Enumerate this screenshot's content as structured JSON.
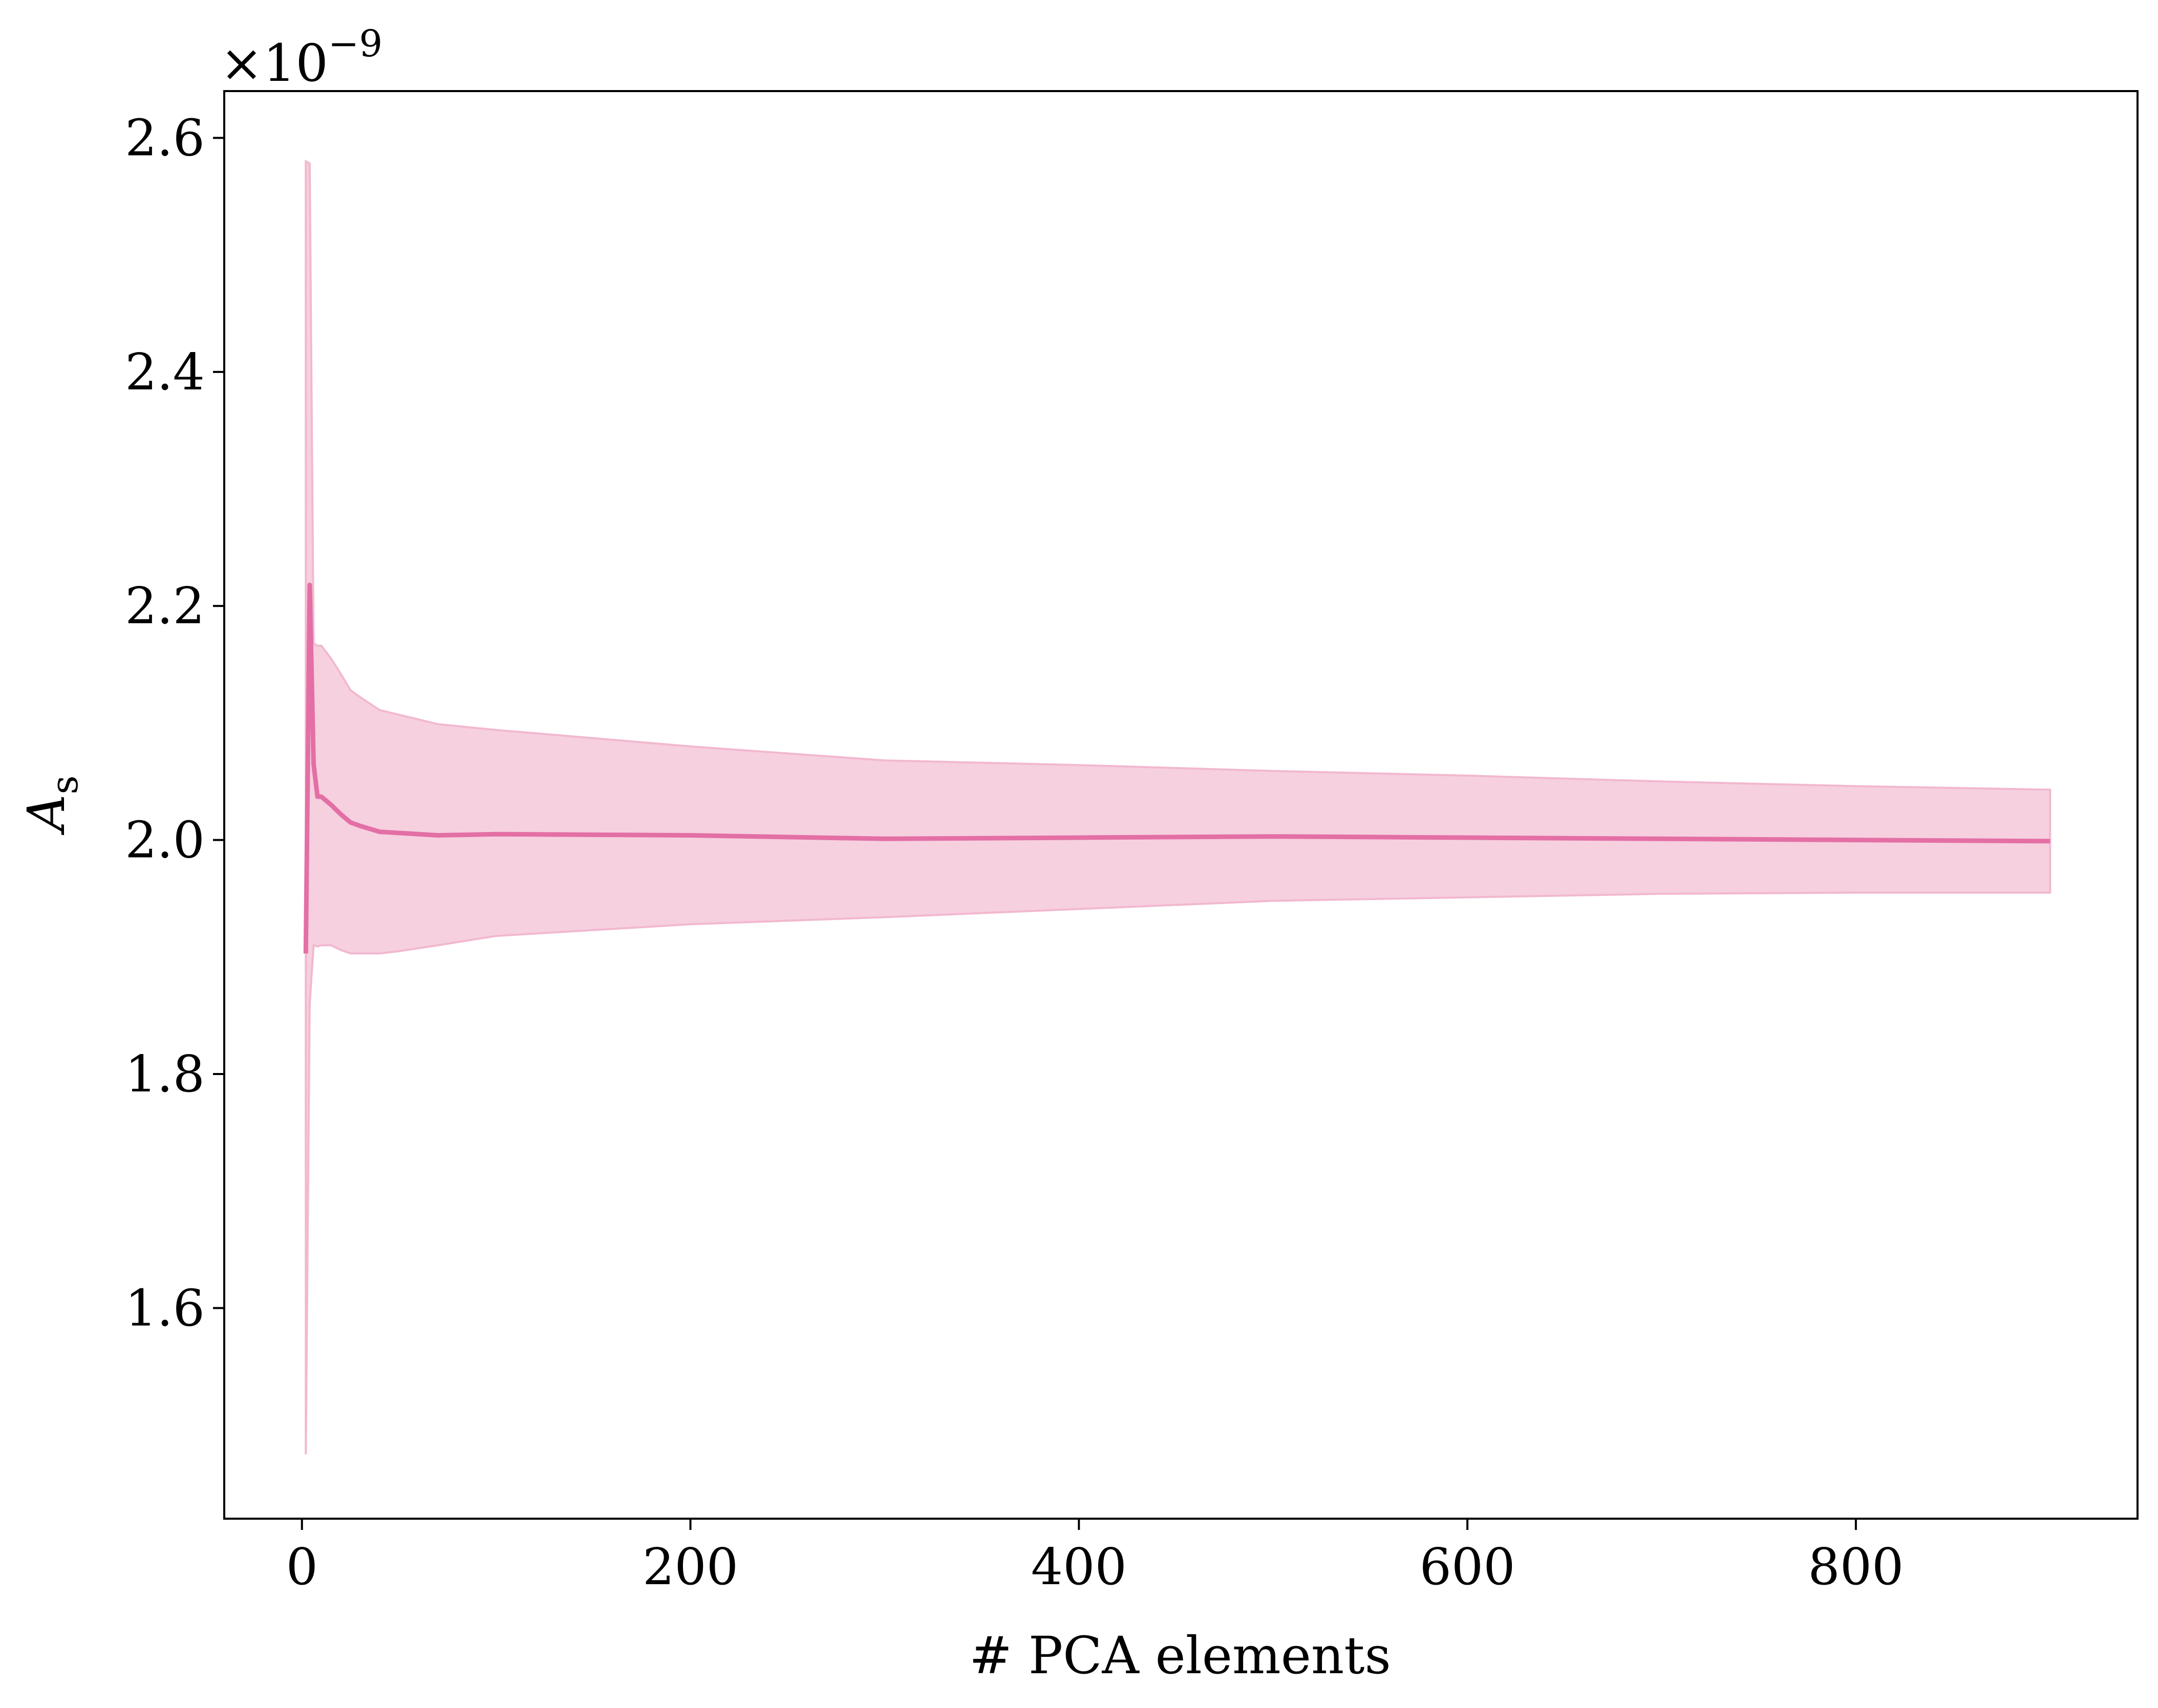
{
  "chart_data": {
    "type": "line",
    "xlabel": "# PCA elements",
    "ylabel": {
      "main": "A",
      "subscript": "s"
    },
    "y_scale_label": {
      "base": "×10",
      "exponent": "−9"
    },
    "xlim": [
      -40,
      945
    ],
    "ylim": [
      1.42,
      2.64
    ],
    "x_ticks": [
      0,
      200,
      400,
      600,
      800
    ],
    "x_tick_labels": [
      "0",
      "200",
      "400",
      "600",
      "800"
    ],
    "y_ticks": [
      1.6,
      1.8,
      2.0,
      2.2,
      2.4,
      2.6
    ],
    "y_tick_labels": [
      "1.6",
      "1.8",
      "2.0",
      "2.2",
      "2.4",
      "2.6"
    ],
    "grid": false,
    "legend": "none",
    "colors": {
      "line": "#e36fa5",
      "band": "#f6d0df",
      "band_edge": "#f2b8cf"
    },
    "series": [
      {
        "x": [
          2,
          4,
          6,
          8,
          10,
          15,
          20,
          25,
          30,
          40,
          50,
          70,
          100,
          200,
          300,
          400,
          500,
          600,
          700,
          800,
          900
        ],
        "y": [
          1.903,
          2.218,
          2.065,
          2.037,
          2.037,
          2.03,
          2.022,
          2.015,
          2.012,
          2.007,
          2.006,
          2.004,
          2.005,
          2.004,
          2.001,
          2.002,
          2.003,
          2.002,
          2.001,
          2.0,
          1.999
        ],
        "lower": [
          1.475,
          1.86,
          1.91,
          1.909,
          1.91,
          1.91,
          1.906,
          1.903,
          1.903,
          1.903,
          1.905,
          1.91,
          1.918,
          1.928,
          1.934,
          1.941,
          1.948,
          1.951,
          1.954,
          1.955,
          1.955
        ],
        "upper": [
          2.58,
          2.578,
          2.168,
          2.166,
          2.166,
          2.155,
          2.142,
          2.128,
          2.122,
          2.111,
          2.107,
          2.099,
          2.094,
          2.08,
          2.068,
          2.064,
          2.059,
          2.055,
          2.05,
          2.046,
          2.043
        ]
      }
    ]
  }
}
